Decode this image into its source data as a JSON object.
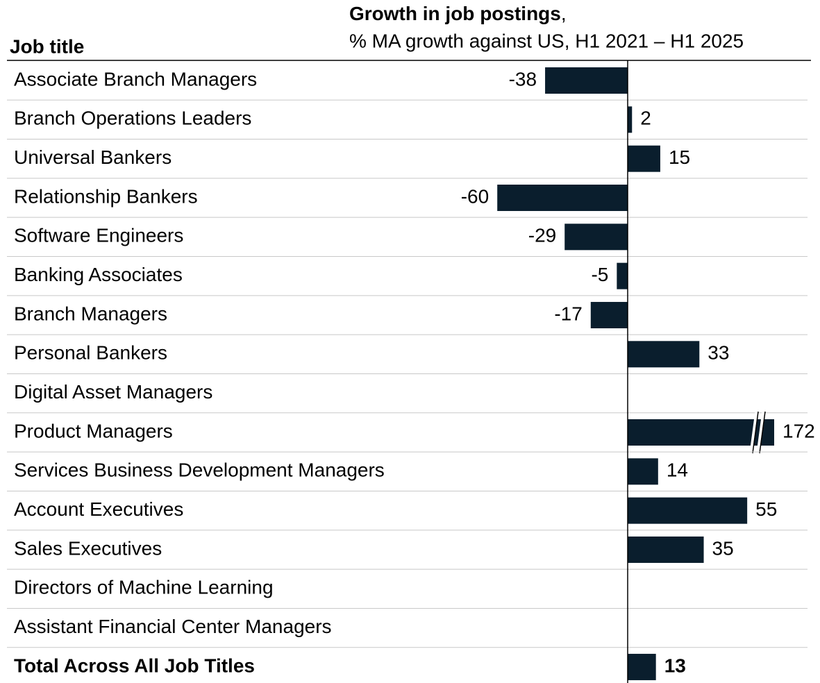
{
  "chart_data": {
    "type": "bar",
    "orientation": "horizontal",
    "title": "Growth in job postings",
    "title_punct": ",",
    "subtitle": "% MA growth against US, H1 2021 – H1 2025",
    "category_header": "Job title",
    "categories": [
      "Associate Branch Managers",
      "Branch Operations Leaders",
      "Universal Bankers",
      "Relationship Bankers",
      "Software Engineers",
      "Banking Associates",
      "Branch Managers",
      "Personal Bankers",
      "Digital Asset Managers",
      "Product Managers",
      "Services Business Development Managers",
      "Account Executives",
      "Sales Executives",
      "Directors of Machine Learning",
      "Assistant Financial Center Managers"
    ],
    "values": [
      -38,
      2,
      15,
      -60,
      -29,
      -5,
      -17,
      33,
      null,
      172,
      14,
      55,
      35,
      null,
      null
    ],
    "total": {
      "label": "Total Across All Job Titles",
      "value": 13
    },
    "color": "#0a1e2d",
    "axis_break": true
  }
}
